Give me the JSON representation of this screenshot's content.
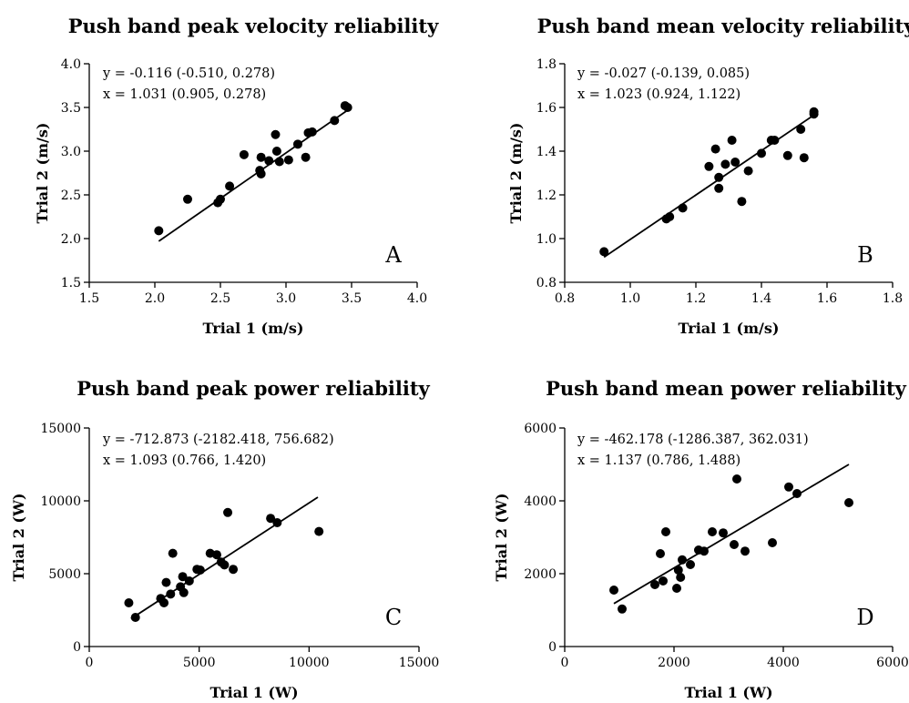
{
  "chart_data": [
    {
      "panel": "A",
      "type": "scatter",
      "title": "Push band peak velocity reliability",
      "xlabel": "Trial 1 (m/s)",
      "ylabel": "Trial 2 (m/s)",
      "xlim": [
        1.5,
        4.0
      ],
      "ylim": [
        1.5,
        4.0
      ],
      "xticks": [
        1.5,
        2.0,
        2.5,
        3.0,
        3.5,
        4.0
      ],
      "yticks": [
        1.5,
        2.0,
        2.5,
        3.0,
        3.5,
        4.0
      ],
      "tick_decimals": 1,
      "equation": [
        "y = -0.116 (-0.510, 0.278)",
        "x = 1.031 (0.905, 0.278)"
      ],
      "fit": {
        "x": [
          2.03,
          3.49
        ],
        "y": [
          1.97,
          3.49
        ]
      },
      "points": [
        [
          2.03,
          2.09
        ],
        [
          2.25,
          2.45
        ],
        [
          2.48,
          2.41
        ],
        [
          2.5,
          2.45
        ],
        [
          2.57,
          2.6
        ],
        [
          2.68,
          2.96
        ],
        [
          2.8,
          2.78
        ],
        [
          2.81,
          2.74
        ],
        [
          2.81,
          2.93
        ],
        [
          2.87,
          2.89
        ],
        [
          2.92,
          3.19
        ],
        [
          2.93,
          3.0
        ],
        [
          2.95,
          2.88
        ],
        [
          3.02,
          2.9
        ],
        [
          3.09,
          3.08
        ],
        [
          3.15,
          2.93
        ],
        [
          3.17,
          3.21
        ],
        [
          3.2,
          3.22
        ],
        [
          3.37,
          3.35
        ],
        [
          3.45,
          3.52
        ],
        [
          3.47,
          3.5
        ]
      ]
    },
    {
      "panel": "B",
      "type": "scatter",
      "title": "Push band mean velocity reliability",
      "xlabel": "Trial 1 (m/s)",
      "ylabel": "Trial 2 (m/s)",
      "xlim": [
        0.8,
        1.8
      ],
      "ylim": [
        0.8,
        1.8
      ],
      "xticks": [
        0.8,
        1.0,
        1.2,
        1.4,
        1.6,
        1.8
      ],
      "yticks": [
        0.8,
        1.0,
        1.2,
        1.4,
        1.6,
        1.8
      ],
      "tick_decimals": 1,
      "equation": [
        "y = -0.027 (-0.139, 0.085)",
        "x = 1.023 (0.924, 1.122)"
      ],
      "fit": {
        "x": [
          0.92,
          1.56
        ],
        "y": [
          0.915,
          1.565
        ]
      },
      "points": [
        [
          0.92,
          0.94
        ],
        [
          1.11,
          1.09
        ],
        [
          1.12,
          1.1
        ],
        [
          1.16,
          1.14
        ],
        [
          1.24,
          1.33
        ],
        [
          1.26,
          1.41
        ],
        [
          1.27,
          1.23
        ],
        [
          1.27,
          1.28
        ],
        [
          1.29,
          1.34
        ],
        [
          1.31,
          1.45
        ],
        [
          1.32,
          1.35
        ],
        [
          1.34,
          1.17
        ],
        [
          1.36,
          1.31
        ],
        [
          1.4,
          1.39
        ],
        [
          1.43,
          1.45
        ],
        [
          1.44,
          1.45
        ],
        [
          1.48,
          1.38
        ],
        [
          1.52,
          1.5
        ],
        [
          1.53,
          1.37
        ],
        [
          1.56,
          1.57
        ],
        [
          1.56,
          1.58
        ]
      ]
    },
    {
      "panel": "C",
      "type": "scatter",
      "title": "Push band peak power reliability",
      "xlabel": "Trial 1 (W)",
      "ylabel": "Trial 2 (W)",
      "xlim": [
        0,
        15000
      ],
      "ylim": [
        0,
        15000
      ],
      "xticks": [
        0,
        5000,
        10000,
        15000
      ],
      "yticks": [
        0,
        5000,
        10000,
        15000
      ],
      "tick_decimals": 0,
      "equation": [
        "y = -712.873 (-2182.418, 756.682)",
        "x = 1.093 (0.766, 1.420)"
      ],
      "fit": {
        "x": [
          1900,
          10400
        ],
        "y": [
          1910,
          10250
        ]
      },
      "points": [
        [
          1800,
          3000
        ],
        [
          2100,
          2000
        ],
        [
          3250,
          3300
        ],
        [
          3400,
          3000
        ],
        [
          3500,
          4400
        ],
        [
          3700,
          3600
        ],
        [
          3800,
          6400
        ],
        [
          4150,
          4100
        ],
        [
          4250,
          4800
        ],
        [
          4300,
          3700
        ],
        [
          4550,
          4500
        ],
        [
          4900,
          5300
        ],
        [
          5050,
          5250
        ],
        [
          5500,
          6400
        ],
        [
          5800,
          6300
        ],
        [
          6000,
          5800
        ],
        [
          6150,
          5600
        ],
        [
          6300,
          9200
        ],
        [
          6550,
          5300
        ],
        [
          8250,
          8800
        ],
        [
          8550,
          8500
        ],
        [
          10450,
          7900
        ]
      ]
    },
    {
      "panel": "D",
      "type": "scatter",
      "title": "Push band mean power reliability",
      "xlabel": "Trial 1 (W)",
      "ylabel": "Trial 2 (W)",
      "xlim": [
        0,
        6000
      ],
      "ylim": [
        0,
        6000
      ],
      "xticks": [
        0,
        2000,
        4000,
        6000
      ],
      "yticks": [
        0,
        2000,
        4000,
        6000
      ],
      "tick_decimals": 0,
      "equation": [
        "y = -462.178 (-1286.387, 362.031)",
        "x = 1.137 (0.786, 1.488)"
      ],
      "fit": {
        "x": [
          900,
          5200
        ],
        "y": [
          1180,
          5000
        ]
      },
      "points": [
        [
          900,
          1550
        ],
        [
          1050,
          1030
        ],
        [
          1650,
          1700
        ],
        [
          1750,
          2550
        ],
        [
          1800,
          1800
        ],
        [
          1850,
          3150
        ],
        [
          2050,
          1600
        ],
        [
          2080,
          2100
        ],
        [
          2120,
          1900
        ],
        [
          2150,
          2380
        ],
        [
          2300,
          2250
        ],
        [
          2450,
          2650
        ],
        [
          2550,
          2620
        ],
        [
          2700,
          3150
        ],
        [
          2900,
          3120
        ],
        [
          3100,
          2800
        ],
        [
          3150,
          4600
        ],
        [
          3300,
          2620
        ],
        [
          3800,
          2850
        ],
        [
          4100,
          4380
        ],
        [
          4250,
          4200
        ],
        [
          5200,
          3950
        ]
      ]
    }
  ]
}
